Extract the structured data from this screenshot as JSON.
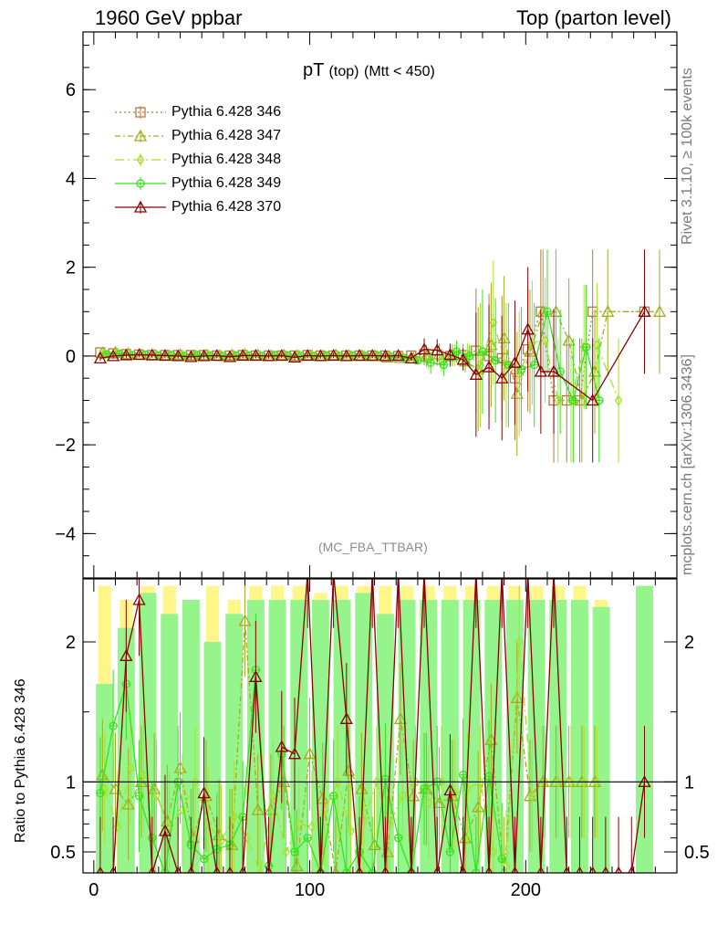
{
  "header": {
    "left": "1960 GeV ppbar",
    "right": "Top (parton level)"
  },
  "side_labels": {
    "rivet": "Rivet 3.1.10, ≥ 100k events",
    "mcplots": "mcplots.cern.ch [arXiv:1306.3436]"
  },
  "plot_title": {
    "main": "pT",
    "sub": "(top)",
    "cut": "(Mtt < 450)"
  },
  "analysis_tag": "(MC_FBA_TTBAR)",
  "ratio_ylabel": "Ratio to Pythia 6.428 346",
  "colors": {
    "s346": "#b5793a",
    "s347": "#a1ad1d",
    "s348": "#a8e030",
    "s349": "#33e41c",
    "s370": "#8b0000",
    "band_yellow": "#fff68a",
    "band_green": "#96f48c"
  },
  "chart_data": [
    {
      "type": "line",
      "panel": "main",
      "xlim": [
        -5,
        270
      ],
      "ylim": [
        -5,
        7.3
      ],
      "yticks": [
        -4,
        -2,
        0,
        2,
        4,
        6
      ],
      "ytick_labels": [
        "−4",
        "−2",
        "0",
        "2",
        "4",
        "6"
      ],
      "legend_position": "top-left",
      "series": [
        {
          "name": "Pythia 6.428 346",
          "color_key": "s346",
          "marker": "square",
          "dash": "2,3",
          "x": [
            3,
            9,
            15,
            21,
            27,
            33,
            39,
            45,
            51,
            57,
            63,
            69,
            75,
            81,
            87,
            93,
            99,
            105,
            111,
            117,
            123,
            129,
            135,
            141,
            147,
            153,
            159,
            165,
            171,
            177,
            183,
            189,
            195,
            201,
            207,
            213,
            219,
            225,
            231,
            255
          ],
          "y": [
            0.08,
            0.06,
            0.04,
            0.03,
            0.02,
            0.02,
            0.02,
            0.02,
            0.02,
            0.01,
            0.01,
            0.02,
            0.01,
            0.01,
            0.01,
            0.01,
            0.02,
            0.01,
            0.01,
            0.01,
            0.01,
            0.01,
            0.01,
            0.0,
            0.01,
            0.04,
            0.03,
            0.0,
            0.02,
            0.12,
            0.0,
            -0.05,
            -0.5,
            0.15,
            1.0,
            -1.0,
            -1.0,
            -1.0,
            1.0,
            1.0
          ]
        },
        {
          "name": "Pythia 6.428 347",
          "color_key": "s347",
          "marker": "triangle",
          "dash": "6,3,2,3",
          "x": [
            4,
            10,
            16,
            22,
            28,
            34,
            40,
            46,
            52,
            58,
            64,
            70,
            76,
            82,
            88,
            94,
            100,
            106,
            112,
            118,
            124,
            130,
            136,
            142,
            148,
            154,
            160,
            166,
            172,
            178,
            184,
            190,
            196,
            202,
            208,
            214,
            220,
            226,
            232,
            238,
            262
          ],
          "y": [
            0.07,
            0.08,
            0.05,
            0.03,
            0.02,
            0.01,
            0.03,
            0.01,
            0.02,
            0.0,
            0.02,
            0.03,
            0.02,
            0.0,
            0.02,
            0.0,
            0.01,
            0.0,
            0.02,
            0.01,
            0.0,
            0.0,
            -0.03,
            -0.04,
            -0.05,
            0.0,
            0.04,
            0.02,
            -0.12,
            -0.3,
            0.25,
            0.4,
            -0.85,
            0.1,
            1.0,
            1.0,
            0.35,
            -1.0,
            -0.35,
            1.0,
            1.0
          ]
        },
        {
          "name": "Pythia 6.428 348",
          "color_key": "s348",
          "marker": "diamond",
          "dash": "10,4,2,4",
          "x": [
            5,
            11,
            17,
            23,
            29,
            35,
            41,
            47,
            53,
            59,
            65,
            71,
            77,
            83,
            89,
            95,
            101,
            107,
            113,
            119,
            125,
            131,
            137,
            143,
            149,
            155,
            161,
            167,
            173,
            179,
            185,
            191,
            197,
            203,
            209,
            215,
            221,
            227,
            233,
            243
          ],
          "y": [
            0.05,
            0.06,
            0.03,
            0.02,
            0.03,
            0.01,
            0.02,
            0.0,
            0.01,
            0.01,
            0.0,
            0.02,
            0.01,
            0.01,
            0.0,
            0.02,
            0.01,
            0.0,
            0.01,
            0.0,
            0.01,
            0.0,
            0.0,
            -0.02,
            -0.08,
            -0.05,
            -0.1,
            0.02,
            0.05,
            -0.2,
            0.75,
            -0.2,
            -0.4,
            0.3,
            0.35,
            -1.0,
            -1.0,
            0.2,
            0.25,
            -1.0
          ]
        },
        {
          "name": "Pythia 6.428 349",
          "color_key": "s349",
          "marker": "circle-cross",
          "dash": "",
          "x": [
            6,
            12,
            18,
            24,
            30,
            36,
            42,
            48,
            54,
            60,
            66,
            72,
            78,
            84,
            90,
            96,
            102,
            108,
            114,
            120,
            126,
            132,
            138,
            144,
            150,
            156,
            162,
            168,
            174,
            180,
            186,
            192,
            198,
            204,
            210,
            216,
            222,
            228,
            234
          ],
          "y": [
            0.04,
            0.05,
            0.02,
            0.03,
            0.01,
            0.02,
            0.0,
            0.02,
            0.01,
            0.0,
            0.01,
            0.01,
            0.0,
            0.02,
            0.01,
            0.0,
            0.0,
            0.01,
            0.0,
            0.01,
            0.0,
            0.01,
            -0.02,
            -0.05,
            -0.1,
            -0.15,
            -0.2,
            0.1,
            0.0,
            0.1,
            -0.1,
            -0.2,
            -0.3,
            -0.2,
            1.0,
            -0.35,
            -1.0,
            0.2,
            -1.0
          ]
        },
        {
          "name": "Pythia 6.428 370",
          "color_key": "s370",
          "marker": "triangle",
          "dash": "",
          "x": [
            3,
            9,
            15,
            21,
            27,
            33,
            39,
            45,
            51,
            57,
            63,
            69,
            75,
            81,
            87,
            93,
            99,
            105,
            111,
            117,
            123,
            129,
            135,
            141,
            147,
            153,
            159,
            165,
            171,
            177,
            183,
            189,
            195,
            201,
            207,
            213,
            231,
            255
          ],
          "y": [
            -0.05,
            0.0,
            0.02,
            0.03,
            0.02,
            0.01,
            0.0,
            -0.02,
            0.0,
            0.01,
            -0.02,
            0.01,
            0.01,
            0.0,
            0.01,
            -0.03,
            0.01,
            0.0,
            0.01,
            0.0,
            0.01,
            0.01,
            0.0,
            0.01,
            -0.05,
            0.15,
            0.13,
            0.03,
            -0.08,
            -0.42,
            -0.25,
            -0.5,
            -0.15,
            0.6,
            -0.35,
            -0.35,
            -1.0,
            1.0
          ]
        }
      ]
    },
    {
      "type": "line",
      "panel": "ratio",
      "ylabel": "Ratio to Pythia 6.428 346",
      "xlim": [
        -5,
        270
      ],
      "ylim": [
        0.35,
        2.45
      ],
      "yticks": [
        0.5,
        1,
        2
      ],
      "ytick_labels": [
        "0.5",
        "1",
        "2"
      ],
      "xticks": [
        0,
        100,
        200
      ],
      "xtick_labels": [
        "0",
        "100",
        "200"
      ],
      "reference_line": 1,
      "series": [
        {
          "name": "Pythia 6.428 347",
          "color_key": "s347",
          "marker": "triangle",
          "dash": "6,3,2,3",
          "x": [
            4,
            10,
            16,
            22,
            28,
            34,
            40,
            46,
            52,
            58,
            64,
            70,
            76,
            82,
            88,
            94,
            100,
            106,
            112,
            118,
            124,
            130,
            136,
            142,
            148,
            154,
            160,
            166,
            172,
            178,
            184,
            190,
            196,
            202,
            208,
            214,
            220,
            226,
            232
          ],
          "y": [
            1.05,
            0.95,
            0.84,
            1.0,
            0.95,
            0.72,
            1.1,
            0.6,
            0.9,
            0.62,
            0.55,
            2.15,
            0.8,
            0.8,
            1.0,
            0.4,
            1.2,
            0.88,
            0.35,
            1.08,
            0.95,
            0.55,
            0.5,
            1.45,
            0.9,
            0.95,
            0.85,
            0.9,
            0.6,
            0.82,
            1.3,
            0.35,
            1.6,
            0.9,
            1.0,
            1.0,
            1.0,
            1.0,
            1.0
          ]
        },
        {
          "name": "Pythia 6.428 348",
          "color_key": "s348",
          "marker": "diamond",
          "dash": "10,4,2,4",
          "x": [
            5,
            11,
            17,
            23,
            29,
            35,
            41,
            47,
            53,
            59,
            65,
            71,
            77,
            83,
            89,
            95,
            101,
            107,
            113,
            119,
            125,
            131,
            137,
            143,
            149,
            155,
            161,
            167,
            173,
            179,
            185,
            191,
            197,
            203,
            209,
            215,
            221,
            227,
            233
          ],
          "y": [
            0.95,
            0.68,
            1.1,
            1.05,
            0.9,
            0.68,
            0.8,
            1.0,
            0.7,
            0.58,
            0.75,
            0.6,
            0.35,
            0.9,
            0.5,
            0.7,
            0.68,
            0.8,
            1.0,
            0.65,
            0.72,
            1.0,
            0.7,
            0.9,
            1.0,
            0.85,
            1.0,
            0.92,
            0.95,
            1.0,
            0.5,
            0.4,
            2.0,
            0.9,
            1.0,
            1.0,
            1.0,
            1.0,
            1.0
          ]
        },
        {
          "name": "Pythia 6.428 349",
          "color_key": "s349",
          "marker": "circle-cross",
          "dash": "",
          "x": [
            3,
            9,
            15,
            21,
            27,
            33,
            39,
            45,
            51,
            57,
            63,
            69,
            75,
            81,
            87,
            93,
            99,
            105,
            111,
            117,
            123,
            129,
            135,
            141,
            147,
            153,
            159,
            165,
            171,
            177,
            183,
            189
          ],
          "y": [
            0.92,
            1.4,
            1.7,
            0.9,
            0.6,
            0.35,
            1.0,
            0.55,
            0.45,
            0.52,
            0.55,
            0.75,
            1.8,
            0.4,
            1.2,
            0.5,
            0.6,
            0.35,
            0.9,
            0.35,
            0.5,
            0.35,
            1.02,
            0.6,
            0.35,
            0.95,
            1.0,
            0.5,
            1.05,
            0.35,
            1.04,
            0.45
          ]
        },
        {
          "name": "Pythia 6.428 370",
          "color_key": "s370",
          "marker": "triangle",
          "dash": "",
          "x": [
            3,
            9,
            15,
            21,
            27,
            33,
            39,
            45,
            51,
            57,
            63,
            69,
            75,
            81,
            87,
            93,
            99,
            105,
            111,
            117,
            123,
            129,
            135,
            141,
            147,
            153,
            159,
            165,
            171,
            177,
            183,
            189,
            195,
            201,
            207,
            213,
            219,
            225,
            231,
            237,
            243,
            249,
            255
          ],
          "y": [
            0.35,
            0.35,
            1.9,
            2.3,
            0.35,
            0.65,
            0.35,
            0.35,
            0.92,
            0.35,
            0.35,
            0.35,
            1.75,
            0.35,
            1.25,
            1.2,
            2.5,
            0.35,
            2.5,
            1.45,
            0.35,
            2.5,
            0.35,
            2.5,
            0.35,
            2.5,
            0.35,
            0.94,
            0.35,
            2.5,
            0.35,
            2.5,
            0.35,
            2.5,
            0.35,
            2.5,
            0.35,
            0.35,
            0.35,
            0.35,
            0.35,
            0.35,
            1.0
          ]
        }
      ]
    }
  ]
}
